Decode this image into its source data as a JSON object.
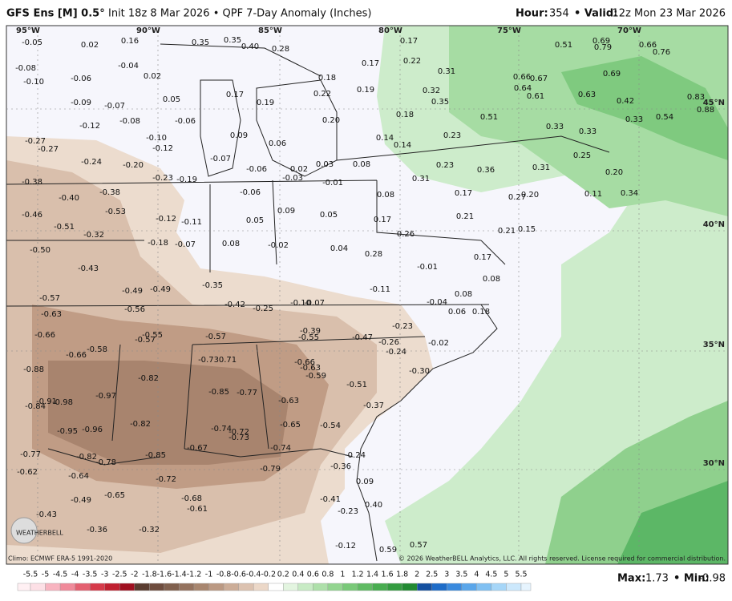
{
  "header": {
    "model": "GFS Ens [M] 0.5°",
    "init": "Init 18z 8 Mar 2026 • QPF 7-Day Anomaly (Inches)",
    "hour_label": "Hour:",
    "hour": "354",
    "valid_label": "• Valid:",
    "valid": "12z Mon 23 Mar 2026"
  },
  "map": {
    "longitudes": [
      "95°W",
      "90°W",
      "85°W",
      "80°W",
      "75°W",
      "70°W"
    ],
    "latitudes": [
      "45°N",
      "40°N",
      "35°N",
      "30°N"
    ],
    "labels": [
      "-0.05",
      "0.02",
      "0.16",
      "0.35",
      "0.35",
      "0.40",
      "0.28",
      "0.17",
      "0.51",
      "0.69",
      "0.79",
      "0.66",
      "0.76",
      "-0.08",
      "-0.04",
      "0.22",
      "0.17",
      "0.31",
      "0.69",
      "-0.10",
      "-0.06",
      "0.02",
      "0.18",
      "0.19",
      "0.66",
      "0.67",
      "0.64",
      "-0.09",
      "-0.07",
      "0.05",
      "0.17",
      "0.19",
      "0.22",
      "0.32",
      "0.35",
      "0.61",
      "0.63",
      "0.42",
      "0.83",
      "0.88",
      "-0.12",
      "-0.08",
      "-0.06",
      "0.20",
      "0.18",
      "0.51",
      "0.33",
      "0.33",
      "0.33",
      "0.54",
      "-0.27",
      "-0.27",
      "-0.10",
      "-0.12",
      "0.09",
      "0.06",
      "0.14",
      "0.14",
      "0.23",
      "0.25",
      "-0.24",
      "-0.20",
      "-0.07",
      "-0.06",
      "0.02",
      "0.03",
      "0.08",
      "0.23",
      "0.36",
      "0.31",
      "0.20",
      "-0.23",
      "-0.19",
      "-0.03",
      "-0.01",
      "0.31",
      "-0.38",
      "-0.40",
      "-0.38",
      "-0.06",
      "0.08",
      "0.17",
      "0.27",
      "0.20",
      "0.11",
      "0.34",
      "-0.46",
      "-0.53",
      "0.09",
      "0.05",
      "0.17",
      "0.21",
      "-0.51",
      "-0.12",
      "-0.11",
      "0.05",
      "0.21",
      "0.15",
      "0.26",
      "-0.32",
      "-0.18",
      "-0.07",
      "0.08",
      "-0.02",
      "0.04",
      "0.28",
      "-0.50",
      "-0.43",
      "0.17",
      "-0.01",
      "0.08",
      "-0.35",
      "-0.49",
      "-0.49",
      "-0.11",
      "0.08",
      "-0.57",
      "-0.63",
      "-0.56",
      "-0.42",
      "-0.25",
      "-0.10",
      "-0.07",
      "-0.04",
      "0.06",
      "0.18",
      "-0.66",
      "-0.55",
      "-0.57",
      "-0.57",
      "-0.39",
      "-0.55",
      "-0.47",
      "-0.26",
      "-0.23",
      "-0.24",
      "-0.02",
      "-0.58",
      "-0.66",
      "-0.73",
      "0.71",
      "-0.66",
      "-0.63",
      "-0.59",
      "-0.30",
      "-0.88",
      "-0.82",
      "-0.51",
      "-0.97",
      "-0.85",
      "-0.77",
      "-0.63",
      "-0.37",
      "-0.91",
      "-0.98",
      "-0.84",
      "-0.96",
      "-0.95",
      "-0.82",
      "-0.74",
      "-0.72",
      "-0.73",
      "-0.65",
      "-0.54",
      "-0.77",
      "-0.67",
      "-0.74",
      "-0.82",
      "-0.78",
      "-0.85",
      "-0.24",
      "-0.62",
      "-0.64",
      "-0.79",
      "-0.36",
      "-0.72",
      "0.09",
      "-0.49",
      "-0.65",
      "-0.68",
      "-0.61",
      "-0.41",
      "0.40",
      "-0.23",
      "-0.43",
      "-0.36",
      "-0.32",
      "-0.12",
      "0.59",
      "0.57"
    ]
  },
  "footer": {
    "climo": "Climo: ECMWF ERA-5 1991-2020",
    "copyright": "© 2026 WeatherBELL Analytics, LLC. All rights reserved. License required for commercial distribution.",
    "logo": "WEATHERBELL",
    "scale": [
      "-5.5",
      "-5",
      "-4.5",
      "-4",
      "-3.5",
      "-3",
      "-2.5",
      "-2",
      "-1.8",
      "-1.6",
      "-1.4",
      "-1.2",
      "-1",
      "-0.8",
      "-0.6",
      "-0.4",
      "-0.2",
      "0.2",
      "0.4",
      "0.6",
      "0.8",
      "1",
      "1.2",
      "1.4",
      "1.6",
      "1.8",
      "2",
      "2.5",
      "3",
      "3.5",
      "4",
      "4.5",
      "5",
      "5.5"
    ],
    "max_label": "Max:",
    "max": "1.73",
    "min_label": "• Min:",
    "min": "-0.98"
  }
}
